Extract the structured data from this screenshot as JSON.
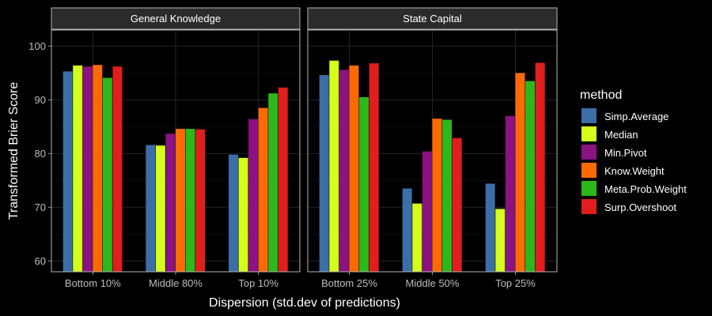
{
  "chart_data": {
    "type": "bar",
    "xlabel": "Dispersion (std.dev of predictions)",
    "ylabel": "Transformed Brier Score",
    "ylim": [
      58,
      103
    ],
    "yticks": [
      60,
      70,
      80,
      90,
      100
    ],
    "grid": true,
    "legend": {
      "title": "method",
      "placement": "right",
      "entries": [
        "Simp.Average",
        "Median",
        "Min.Pivot",
        "Know.Weight",
        "Meta.Prob.Weight",
        "Surp.Overshoot"
      ]
    },
    "colors": [
      "#3c6ea8",
      "#d4ff1a",
      "#8b1282",
      "#ff6a00",
      "#2bb81a",
      "#e01e1e"
    ],
    "panels": [
      {
        "strip": "General Knowledge",
        "categories": [
          "Bottom 10%",
          "Middle 80%",
          "Top 10%"
        ],
        "series": [
          {
            "name": "Simp.Average",
            "values": [
              95.3,
              81.6,
              79.8
            ]
          },
          {
            "name": "Median",
            "values": [
              96.4,
              81.5,
              79.2
            ]
          },
          {
            "name": "Min.Pivot",
            "values": [
              96.2,
              83.7,
              86.4
            ]
          },
          {
            "name": "Know.Weight",
            "values": [
              96.5,
              84.6,
              88.5
            ]
          },
          {
            "name": "Meta.Prob.Weight",
            "values": [
              94.1,
              84.6,
              91.2
            ]
          },
          {
            "name": "Surp.Overshoot",
            "values": [
              96.2,
              84.5,
              92.3
            ]
          }
        ]
      },
      {
        "strip": "State Capital",
        "categories": [
          "Bottom 25%",
          "Middle 50%",
          "Top 25%"
        ],
        "series": [
          {
            "name": "Simp.Average",
            "values": [
              94.6,
              73.5,
              74.4
            ]
          },
          {
            "name": "Median",
            "values": [
              97.3,
              70.7,
              69.7
            ]
          },
          {
            "name": "Min.Pivot",
            "values": [
              95.6,
              80.4,
              87.0
            ]
          },
          {
            "name": "Know.Weight",
            "values": [
              96.4,
              86.5,
              95.0
            ]
          },
          {
            "name": "Meta.Prob.Weight",
            "values": [
              90.5,
              86.3,
              93.5
            ]
          },
          {
            "name": "Surp.Overshoot",
            "values": [
              96.8,
              82.9,
              96.9
            ]
          }
        ]
      }
    ]
  }
}
